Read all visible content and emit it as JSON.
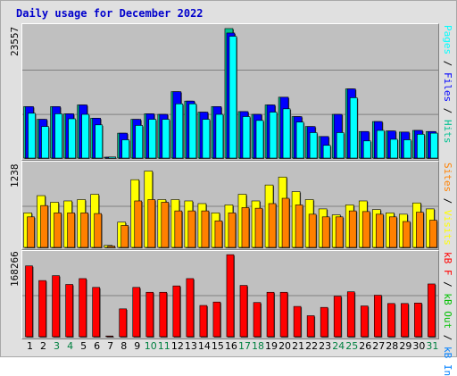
{
  "title": "Daily usage for December 2022",
  "colors": {
    "background": "#e0e0e0",
    "plot": "#c0c0c0",
    "hits": "#00c090",
    "files": "#0000ff",
    "pages": "#00ffff",
    "visits": "#ffff00",
    "sites": "#ff8000",
    "kbin": "#0080ff",
    "kbout": "#00c000",
    "kbf": "#ff0000",
    "weekday_tick": "#000000",
    "weekend_tick": "#008040"
  },
  "right_labels": {
    "panel1": [
      {
        "text": "Pages",
        "color": "#00ffff"
      },
      {
        "text": " / ",
        "color": "#000000"
      },
      {
        "text": "Files",
        "color": "#0000ff"
      },
      {
        "text": " / ",
        "color": "#000000"
      },
      {
        "text": "Hits",
        "color": "#00c090"
      }
    ],
    "panel2": [
      {
        "text": "Sites",
        "color": "#ff8000"
      },
      {
        "text": " / ",
        "color": "#000000"
      },
      {
        "text": "Visits",
        "color": "#ffff00"
      }
    ],
    "panel3": [
      {
        "text": "kB F",
        "color": "#ff0000"
      },
      {
        "text": " / ",
        "color": "#000000"
      },
      {
        "text": "kB Out",
        "color": "#00c000"
      },
      {
        "text": " / ",
        "color": "#000000"
      },
      {
        "text": "kB In",
        "color": "#0080ff"
      }
    ]
  },
  "chart_data": [
    {
      "type": "bar",
      "ymax_label": "23557",
      "ylim": [
        0,
        23557
      ],
      "categories": [
        "1",
        "2",
        "3",
        "4",
        "5",
        "6",
        "7",
        "8",
        "9",
        "10",
        "11",
        "12",
        "13",
        "14",
        "15",
        "16",
        "17",
        "18",
        "19",
        "20",
        "21",
        "22",
        "23",
        "24",
        "25",
        "26",
        "27",
        "28",
        "29",
        "30",
        "31"
      ],
      "weekend_days": [
        3,
        4,
        10,
        11,
        17,
        18,
        24,
        25,
        31
      ],
      "series": [
        {
          "name": "Hits",
          "values": [
            9300,
            7000,
            9300,
            8000,
            9600,
            7200,
            0,
            4500,
            7000,
            8000,
            7900,
            12000,
            10300,
            8300,
            9300,
            23400,
            8400,
            7900,
            9600,
            11000,
            7500,
            5700,
            3900,
            7900,
            12500,
            4800,
            6600,
            4900,
            4700,
            5000,
            4800
          ]
        },
        {
          "name": "Files",
          "values": [
            9300,
            7000,
            9300,
            8000,
            9600,
            7200,
            0,
            4500,
            7000,
            8000,
            7900,
            12000,
            10300,
            8300,
            9300,
            22600,
            8400,
            7900,
            9600,
            11000,
            7500,
            5700,
            3900,
            7900,
            12500,
            4800,
            6600,
            4900,
            4700,
            5000,
            4800
          ]
        },
        {
          "name": "Pages",
          "values": [
            8100,
            5700,
            8000,
            7100,
            7900,
            6000,
            200,
            3300,
            5900,
            7000,
            7000,
            9800,
            9800,
            7000,
            7900,
            22000,
            7500,
            6800,
            8300,
            8900,
            6500,
            4600,
            2300,
            4600,
            10900,
            3100,
            5000,
            3400,
            3300,
            4300,
            4500
          ]
        }
      ]
    },
    {
      "type": "bar",
      "ymax_label": "1238",
      "ylim": [
        0,
        1238
      ],
      "categories": [
        "1",
        "2",
        "3",
        "4",
        "5",
        "6",
        "7",
        "8",
        "9",
        "10",
        "11",
        "12",
        "13",
        "14",
        "15",
        "16",
        "17",
        "18",
        "19",
        "20",
        "21",
        "22",
        "23",
        "24",
        "25",
        "26",
        "27",
        "28",
        "29",
        "30",
        "31"
      ],
      "series": [
        {
          "name": "Visits",
          "values": [
            520,
            780,
            680,
            700,
            720,
            800,
            30,
            380,
            1020,
            1150,
            720,
            720,
            700,
            660,
            520,
            640,
            800,
            700,
            940,
            1060,
            840,
            720,
            580,
            490,
            640,
            700,
            570,
            520,
            500,
            670,
            580
          ]
        },
        {
          "name": "Sites",
          "values": [
            460,
            630,
            520,
            520,
            520,
            510,
            20,
            330,
            700,
            720,
            680,
            550,
            550,
            550,
            400,
            520,
            600,
            590,
            660,
            740,
            640,
            500,
            460,
            460,
            550,
            540,
            500,
            460,
            390,
            530,
            410
          ]
        }
      ]
    },
    {
      "type": "bar",
      "ymax_label": "168266",
      "ylim": [
        0,
        168266
      ],
      "categories": [
        "1",
        "2",
        "3",
        "4",
        "5",
        "6",
        "7",
        "8",
        "9",
        "10",
        "11",
        "12",
        "13",
        "14",
        "15",
        "16",
        "17",
        "18",
        "19",
        "20",
        "21",
        "22",
        "23",
        "24",
        "25",
        "26",
        "27",
        "28",
        "29",
        "30",
        "31"
      ],
      "series": [
        {
          "name": "kB F",
          "values": [
            145000,
            115000,
            125000,
            107000,
            119000,
            101000,
            1500,
            57000,
            101000,
            91000,
            91000,
            104000,
            119000,
            64000,
            71000,
            168000,
            105000,
            70000,
            91000,
            91000,
            62000,
            43000,
            60000,
            83000,
            92000,
            63000,
            85000,
            68000,
            68000,
            69000,
            108000
          ]
        }
      ]
    }
  ],
  "x_tick_labels": [
    "1",
    "2",
    "3",
    "4",
    "5",
    "6",
    "7",
    "8",
    "9",
    "10",
    "11",
    "12",
    "13",
    "14",
    "15",
    "16",
    "17",
    "18",
    "19",
    "20",
    "21",
    "22",
    "23",
    "24",
    "25",
    "26",
    "27",
    "28",
    "29",
    "30",
    "31"
  ]
}
